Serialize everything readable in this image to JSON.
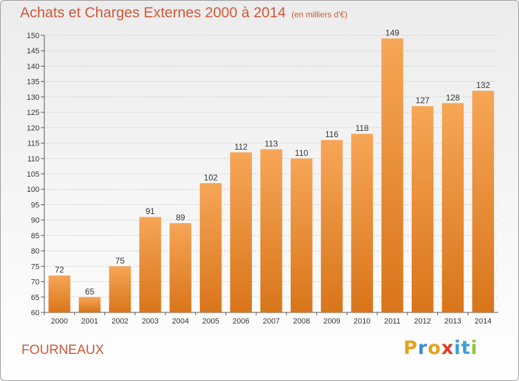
{
  "title": "Achats et Charges Externes 2000 à 2014",
  "unit_note": "(en milliers d'€)",
  "commune": "FOURNEAUX",
  "logo": {
    "letters": [
      "P",
      "r",
      "o",
      "x",
      "i",
      "t",
      "i"
    ],
    "colors": [
      "#e8a020",
      "#3a8fd6",
      "#e8a020",
      "#e03a2a",
      "#3aa0d6",
      "#3aa0d6",
      "#8cc63f"
    ]
  },
  "colors": {
    "bar_top": "#f6a657",
    "bar_bottom": "#d9751a",
    "title": "#d0583a",
    "grid": "#cccccc"
  },
  "chart_data": {
    "type": "bar",
    "categories": [
      "2000",
      "2001",
      "2002",
      "2003",
      "2004",
      "2005",
      "2006",
      "2007",
      "2008",
      "2009",
      "2010",
      "2011",
      "2012",
      "2013",
      "2014"
    ],
    "values": [
      72,
      65,
      75,
      91,
      89,
      102,
      112,
      113,
      110,
      116,
      118,
      149,
      127,
      128,
      132
    ],
    "ylim": [
      60,
      150
    ],
    "yticks": [
      60,
      65,
      70,
      75,
      80,
      85,
      90,
      95,
      100,
      105,
      110,
      115,
      120,
      125,
      130,
      135,
      140,
      145,
      150
    ],
    "grid": true,
    "data_labels": true
  }
}
